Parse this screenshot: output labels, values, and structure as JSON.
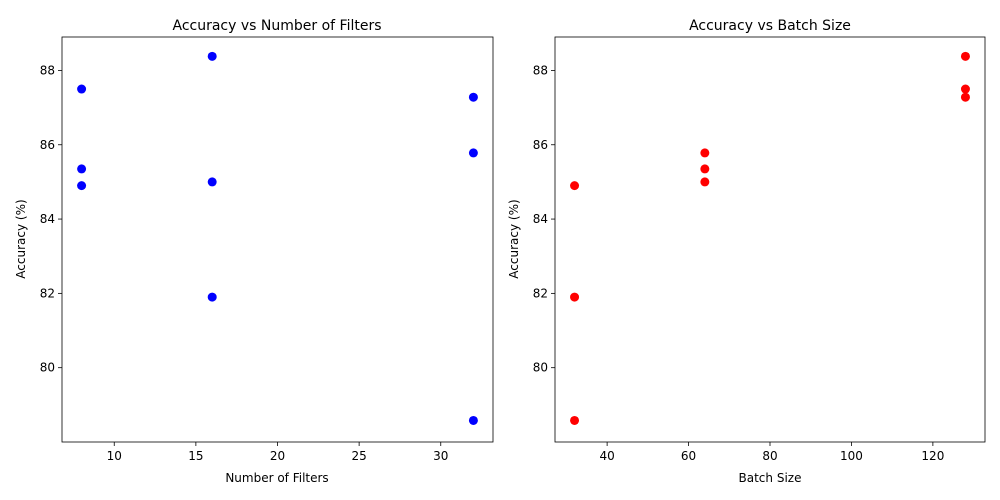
{
  "chart_data": [
    {
      "type": "scatter",
      "title": "Accuracy vs Number of Filters",
      "xlabel": "Number of Filters",
      "ylabel": "Accuracy (%)",
      "xlim": [
        6.8,
        33.2
      ],
      "ylim": [
        78.0,
        88.9
      ],
      "xticks": [
        10,
        15,
        20,
        25,
        30
      ],
      "yticks": [
        80,
        82,
        84,
        86,
        88
      ],
      "grid": false,
      "color": "#0000ff",
      "points": [
        {
          "x": 8,
          "y": 87.5
        },
        {
          "x": 8,
          "y": 85.35
        },
        {
          "x": 8,
          "y": 84.9
        },
        {
          "x": 16,
          "y": 88.38
        },
        {
          "x": 16,
          "y": 85.0
        },
        {
          "x": 16,
          "y": 81.9
        },
        {
          "x": 32,
          "y": 87.28
        },
        {
          "x": 32,
          "y": 85.78
        },
        {
          "x": 32,
          "y": 78.58
        }
      ]
    },
    {
      "type": "scatter",
      "title": "Accuracy vs Batch Size",
      "xlabel": "Batch Size",
      "ylabel": "Accuracy (%)",
      "xlim": [
        27.2,
        132.8
      ],
      "ylim": [
        78.0,
        88.9
      ],
      "xticks": [
        40,
        60,
        80,
        100,
        120
      ],
      "yticks": [
        80,
        82,
        84,
        86,
        88
      ],
      "grid": false,
      "color": "#ff0000",
      "points": [
        {
          "x": 128,
          "y": 87.5
        },
        {
          "x": 64,
          "y": 85.35
        },
        {
          "x": 32,
          "y": 84.9
        },
        {
          "x": 128,
          "y": 88.38
        },
        {
          "x": 64,
          "y": 85.0
        },
        {
          "x": 32,
          "y": 81.9
        },
        {
          "x": 128,
          "y": 87.28
        },
        {
          "x": 64,
          "y": 85.78
        },
        {
          "x": 32,
          "y": 78.58
        }
      ]
    }
  ]
}
